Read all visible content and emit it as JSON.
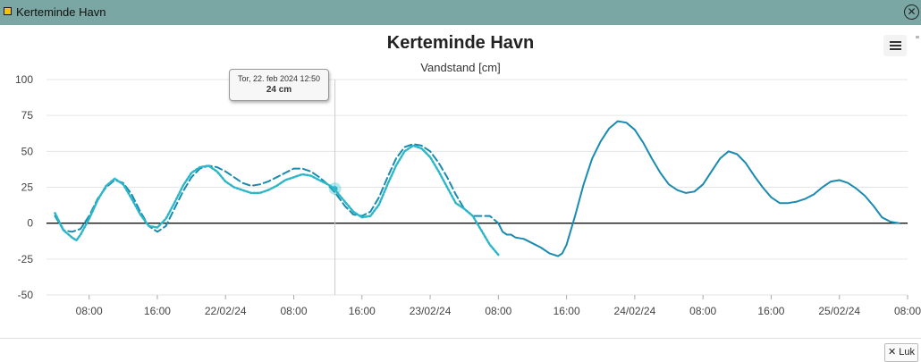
{
  "window": {
    "title": "Kerteminde Havn",
    "close_glyph": "✕"
  },
  "header": {
    "menu_icon": "hamburger-menu-icon"
  },
  "tooltip": {
    "time": "Tor, 22. feb 2024 12:50",
    "value": "24 cm"
  },
  "footer": {
    "close_label": "✕ Luk"
  },
  "colors": {
    "titlebar": "#7aa7a3",
    "series": "#1a8bb0",
    "observed": "#2cb7c9",
    "zero_line": "#111111",
    "grid": "#e6e6e6"
  },
  "chart_data": {
    "type": "line",
    "title": "Kerteminde Havn",
    "subtitle": "Vandstand [cm]",
    "ylabel": "",
    "ylim": [
      -50,
      100
    ],
    "yticks": [
      -50,
      -25,
      0,
      25,
      50,
      75,
      100
    ],
    "xlim": [
      "2024-02-21T03:00",
      "2024-02-25T08:00"
    ],
    "xticks": [
      {
        "t": "2024-02-21T08:00",
        "label": "08:00"
      },
      {
        "t": "2024-02-21T16:00",
        "label": "16:00"
      },
      {
        "t": "2024-02-22T00:00",
        "label": "22/02/24"
      },
      {
        "t": "2024-02-22T08:00",
        "label": "08:00"
      },
      {
        "t": "2024-02-22T16:00",
        "label": "16:00"
      },
      {
        "t": "2024-02-23T00:00",
        "label": "23/02/24"
      },
      {
        "t": "2024-02-23T08:00",
        "label": "08:00"
      },
      {
        "t": "2024-02-23T16:00",
        "label": "16:00"
      },
      {
        "t": "2024-02-24T00:00",
        "label": "24/02/24"
      },
      {
        "t": "2024-02-24T08:00",
        "label": "08:00"
      },
      {
        "t": "2024-02-24T16:00",
        "label": "16:00"
      },
      {
        "t": "2024-02-25T00:00",
        "label": "25/02/24"
      },
      {
        "t": "2024-02-25T08:00",
        "label": "08:00"
      }
    ],
    "grid": true,
    "crosshair": "2024-02-22T12:50",
    "highlight_point": {
      "t": "2024-02-22T12:50",
      "y": 24
    },
    "series": [
      {
        "style": "solid",
        "points": [
          [
            "2024-02-23T08:00",
            0
          ],
          [
            "2024-02-23T08:30",
            -6
          ],
          [
            "2024-02-23T09:00",
            -8
          ],
          [
            "2024-02-23T09:30",
            -8
          ],
          [
            "2024-02-23T10:00",
            -10
          ],
          [
            "2024-02-23T11:00",
            -11
          ],
          [
            "2024-02-23T12:00",
            -14
          ],
          [
            "2024-02-23T13:00",
            -17
          ],
          [
            "2024-02-23T14:00",
            -21
          ],
          [
            "2024-02-23T15:00",
            -23
          ],
          [
            "2024-02-23T15:30",
            -21
          ],
          [
            "2024-02-23T16:00",
            -15
          ],
          [
            "2024-02-23T17:00",
            5
          ],
          [
            "2024-02-23T18:00",
            27
          ],
          [
            "2024-02-23T19:00",
            45
          ],
          [
            "2024-02-23T20:00",
            57
          ],
          [
            "2024-02-23T21:00",
            66
          ],
          [
            "2024-02-23T22:00",
            71
          ],
          [
            "2024-02-23T23:00",
            70
          ],
          [
            "2024-02-24T00:00",
            65
          ],
          [
            "2024-02-24T01:00",
            56
          ],
          [
            "2024-02-24T02:00",
            45
          ],
          [
            "2024-02-24T03:00",
            35
          ],
          [
            "2024-02-24T04:00",
            27
          ],
          [
            "2024-02-24T05:00",
            23
          ],
          [
            "2024-02-24T06:00",
            21
          ],
          [
            "2024-02-24T07:00",
            22
          ],
          [
            "2024-02-24T08:00",
            27
          ],
          [
            "2024-02-24T09:00",
            36
          ],
          [
            "2024-02-24T10:00",
            45
          ],
          [
            "2024-02-24T11:00",
            50
          ],
          [
            "2024-02-24T12:00",
            48
          ],
          [
            "2024-02-24T13:00",
            42
          ],
          [
            "2024-02-24T14:00",
            33
          ],
          [
            "2024-02-24T15:00",
            25
          ],
          [
            "2024-02-24T16:00",
            18
          ],
          [
            "2024-02-24T17:00",
            14
          ],
          [
            "2024-02-24T18:00",
            14
          ],
          [
            "2024-02-24T19:00",
            15
          ],
          [
            "2024-02-24T20:00",
            17
          ],
          [
            "2024-02-24T21:00",
            20
          ],
          [
            "2024-02-24T22:00",
            25
          ],
          [
            "2024-02-24T23:00",
            29
          ],
          [
            "2024-02-25T00:00",
            30
          ],
          [
            "2024-02-25T01:00",
            28
          ],
          [
            "2024-02-25T02:00",
            24
          ],
          [
            "2024-02-25T03:00",
            19
          ],
          [
            "2024-02-25T04:00",
            12
          ],
          [
            "2024-02-25T05:00",
            4
          ],
          [
            "2024-02-25T06:00",
            1
          ],
          [
            "2024-02-25T07:00",
            0
          ]
        ]
      },
      {
        "style": "dashed",
        "points": [
          [
            "2024-02-21T04:00",
            5
          ],
          [
            "2024-02-21T05:00",
            -5
          ],
          [
            "2024-02-21T06:00",
            -6
          ],
          [
            "2024-02-21T07:00",
            -4
          ],
          [
            "2024-02-21T08:00",
            5
          ],
          [
            "2024-02-21T09:00",
            17
          ],
          [
            "2024-02-21T10:00",
            25
          ],
          [
            "2024-02-21T11:00",
            30
          ],
          [
            "2024-02-21T12:00",
            28
          ],
          [
            "2024-02-21T13:00",
            20
          ],
          [
            "2024-02-21T14:00",
            8
          ],
          [
            "2024-02-21T15:00",
            -2
          ],
          [
            "2024-02-21T16:00",
            -6
          ],
          [
            "2024-02-21T17:00",
            -2
          ],
          [
            "2024-02-21T18:00",
            10
          ],
          [
            "2024-02-21T19:00",
            22
          ],
          [
            "2024-02-21T20:00",
            32
          ],
          [
            "2024-02-21T21:00",
            38
          ],
          [
            "2024-02-21T22:00",
            40
          ],
          [
            "2024-02-21T23:00",
            39
          ],
          [
            "2024-02-22T00:00",
            36
          ],
          [
            "2024-02-22T01:00",
            32
          ],
          [
            "2024-02-22T02:00",
            28
          ],
          [
            "2024-02-22T03:00",
            26
          ],
          [
            "2024-02-22T04:00",
            27
          ],
          [
            "2024-02-22T05:00",
            29
          ],
          [
            "2024-02-22T06:00",
            32
          ],
          [
            "2024-02-22T07:00",
            35
          ],
          [
            "2024-02-22T08:00",
            38
          ],
          [
            "2024-02-22T09:00",
            38
          ],
          [
            "2024-02-22T10:00",
            36
          ],
          [
            "2024-02-22T11:00",
            32
          ],
          [
            "2024-02-22T12:00",
            27
          ],
          [
            "2024-02-22T13:00",
            20
          ],
          [
            "2024-02-22T14:00",
            12
          ],
          [
            "2024-02-22T15:00",
            6
          ],
          [
            "2024-02-22T16:00",
            5
          ],
          [
            "2024-02-22T17:00",
            8
          ],
          [
            "2024-02-22T18:00",
            18
          ],
          [
            "2024-02-22T19:00",
            32
          ],
          [
            "2024-02-22T20:00",
            45
          ],
          [
            "2024-02-22T21:00",
            53
          ],
          [
            "2024-02-22T22:00",
            55
          ],
          [
            "2024-02-22T23:00",
            54
          ],
          [
            "2024-02-23T00:00",
            50
          ],
          [
            "2024-02-23T01:00",
            42
          ],
          [
            "2024-02-23T02:00",
            32
          ],
          [
            "2024-02-23T03:00",
            20
          ],
          [
            "2024-02-23T04:00",
            10
          ],
          [
            "2024-02-23T05:00",
            5
          ],
          [
            "2024-02-23T06:00",
            5
          ],
          [
            "2024-02-23T07:00",
            5
          ],
          [
            "2024-02-23T08:00",
            0
          ]
        ]
      },
      {
        "style": "dotted",
        "points": [
          [
            "2024-02-21T04:00",
            7
          ],
          [
            "2024-02-21T05:00",
            -5
          ],
          [
            "2024-02-21T06:00",
            -10
          ],
          [
            "2024-02-21T06:30",
            -12
          ],
          [
            "2024-02-21T07:00",
            -8
          ],
          [
            "2024-02-21T08:00",
            3
          ],
          [
            "2024-02-21T09:00",
            16
          ],
          [
            "2024-02-21T10:00",
            26
          ],
          [
            "2024-02-21T11:00",
            31
          ],
          [
            "2024-02-21T12:00",
            27
          ],
          [
            "2024-02-21T13:00",
            17
          ],
          [
            "2024-02-21T14:00",
            6
          ],
          [
            "2024-02-21T15:00",
            -2
          ],
          [
            "2024-02-21T16:00",
            -3
          ],
          [
            "2024-02-21T17:00",
            3
          ],
          [
            "2024-02-21T18:00",
            14
          ],
          [
            "2024-02-21T19:00",
            26
          ],
          [
            "2024-02-21T20:00",
            35
          ],
          [
            "2024-02-21T21:00",
            39
          ],
          [
            "2024-02-21T22:00",
            40
          ],
          [
            "2024-02-21T23:00",
            36
          ],
          [
            "2024-02-22T00:00",
            29
          ],
          [
            "2024-02-22T01:00",
            25
          ],
          [
            "2024-02-22T02:00",
            23
          ],
          [
            "2024-02-22T03:00",
            21
          ],
          [
            "2024-02-22T04:00",
            21
          ],
          [
            "2024-02-22T05:00",
            23
          ],
          [
            "2024-02-22T06:00",
            26
          ],
          [
            "2024-02-22T07:00",
            30
          ],
          [
            "2024-02-22T08:00",
            32
          ],
          [
            "2024-02-22T09:00",
            34
          ],
          [
            "2024-02-22T10:00",
            33
          ],
          [
            "2024-02-22T11:00",
            30
          ],
          [
            "2024-02-22T12:00",
            27
          ],
          [
            "2024-02-22T12:50",
            24
          ],
          [
            "2024-02-22T13:00",
            22
          ],
          [
            "2024-02-22T14:00",
            15
          ],
          [
            "2024-02-22T15:00",
            8
          ],
          [
            "2024-02-22T16:00",
            4
          ],
          [
            "2024-02-22T17:00",
            5
          ],
          [
            "2024-02-22T18:00",
            13
          ],
          [
            "2024-02-22T19:00",
            27
          ],
          [
            "2024-02-22T20:00",
            40
          ],
          [
            "2024-02-22T21:00",
            50
          ],
          [
            "2024-02-22T22:00",
            54
          ],
          [
            "2024-02-22T23:00",
            52
          ],
          [
            "2024-02-23T00:00",
            46
          ],
          [
            "2024-02-23T01:00",
            36
          ],
          [
            "2024-02-23T02:00",
            25
          ],
          [
            "2024-02-23T03:00",
            14
          ],
          [
            "2024-02-23T04:00",
            10
          ],
          [
            "2024-02-23T05:00",
            5
          ],
          [
            "2024-02-23T06:00",
            -5
          ],
          [
            "2024-02-23T07:00",
            -15
          ],
          [
            "2024-02-23T08:00",
            -22
          ]
        ]
      }
    ]
  }
}
